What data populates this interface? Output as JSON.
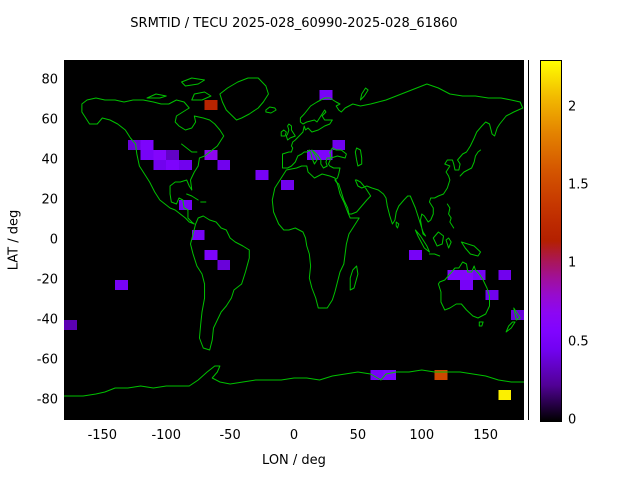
{
  "title": "SRMTID / TECU 2025-028_60990-2025-028_61860",
  "axes": {
    "x_label": "LON / deg",
    "y_label": "LAT / deg",
    "x_ticks": [
      -150,
      -100,
      -50,
      0,
      50,
      100,
      150
    ],
    "y_ticks": [
      -80,
      -60,
      -40,
      -20,
      0,
      20,
      40,
      60,
      80
    ]
  },
  "colorbar": {
    "ticks": [
      0,
      0.5,
      1,
      1.5,
      2
    ],
    "min": 0,
    "max": 2.3
  },
  "colors": {
    "plot_background": "#000000",
    "coastline": "#00c000",
    "page_background": "#ffffff",
    "text": "#000000"
  },
  "chart_data": {
    "type": "heatmap",
    "title": "SRMTID / TECU 2025-028_60990-2025-028_61860",
    "xlabel": "LON / deg",
    "ylabel": "LAT / deg",
    "x_range": [
      -180,
      180
    ],
    "y_range": [
      -90,
      90
    ],
    "c_range": [
      0,
      2.3
    ],
    "cell_size": {
      "lon": 10,
      "lat": 5
    },
    "palette": [
      [
        0,
        0,
        0,
        0
      ],
      [
        0.1,
        81,
        1,
        150
      ],
      [
        0.2,
        114,
        2,
        242
      ],
      [
        0.25,
        128,
        4,
        255
      ],
      [
        0.3,
        140,
        7,
        243
      ],
      [
        0.35,
        151,
        11,
        206
      ],
      [
        0.4,
        161,
        16,
        150
      ],
      [
        0.45,
        171,
        23,
        79
      ],
      [
        0.5,
        180,
        32,
        0
      ],
      [
        0.55,
        189,
        42,
        0
      ],
      [
        0.6,
        198,
        55,
        0
      ],
      [
        0.7,
        213,
        87,
        0
      ],
      [
        0.8,
        228,
        131,
        0
      ],
      [
        0.9,
        242,
        186,
        0
      ],
      [
        1,
        255,
        255,
        0
      ]
    ],
    "cells": [
      [
        -70,
        65,
        1.2
      ],
      [
        20,
        70,
        0.5
      ],
      [
        -130,
        45,
        0.4
      ],
      [
        -120,
        45,
        0.55
      ],
      [
        -120,
        40,
        0.5
      ],
      [
        -110,
        40,
        0.6
      ],
      [
        -110,
        35,
        0.45
      ],
      [
        -100,
        35,
        0.55
      ],
      [
        -100,
        40,
        0.35
      ],
      [
        -90,
        35,
        0.45
      ],
      [
        -70,
        40,
        0.7
      ],
      [
        -60,
        35,
        0.45
      ],
      [
        -30,
        30,
        0.5
      ],
      [
        10,
        40,
        0.5
      ],
      [
        20,
        40,
        0.55
      ],
      [
        30,
        45,
        0.45
      ],
      [
        -10,
        25,
        0.45
      ],
      [
        -90,
        15,
        0.5
      ],
      [
        -80,
        0,
        0.5
      ],
      [
        -70,
        -10,
        0.55
      ],
      [
        -60,
        -15,
        0.4
      ],
      [
        -140,
        -25,
        0.5
      ],
      [
        -180,
        -45,
        0.3
      ],
      [
        90,
        -10,
        0.5
      ],
      [
        120,
        -20,
        0.55
      ],
      [
        130,
        -20,
        0.6
      ],
      [
        140,
        -20,
        0.5
      ],
      [
        130,
        -25,
        0.5
      ],
      [
        150,
        -30,
        0.45
      ],
      [
        160,
        -20,
        0.45
      ],
      [
        170,
        -40,
        0.4
      ],
      [
        60,
        -70,
        0.5
      ],
      [
        70,
        -70,
        0.55
      ],
      [
        110,
        -70,
        1.5
      ],
      [
        160,
        -80,
        2.25
      ]
    ]
  }
}
